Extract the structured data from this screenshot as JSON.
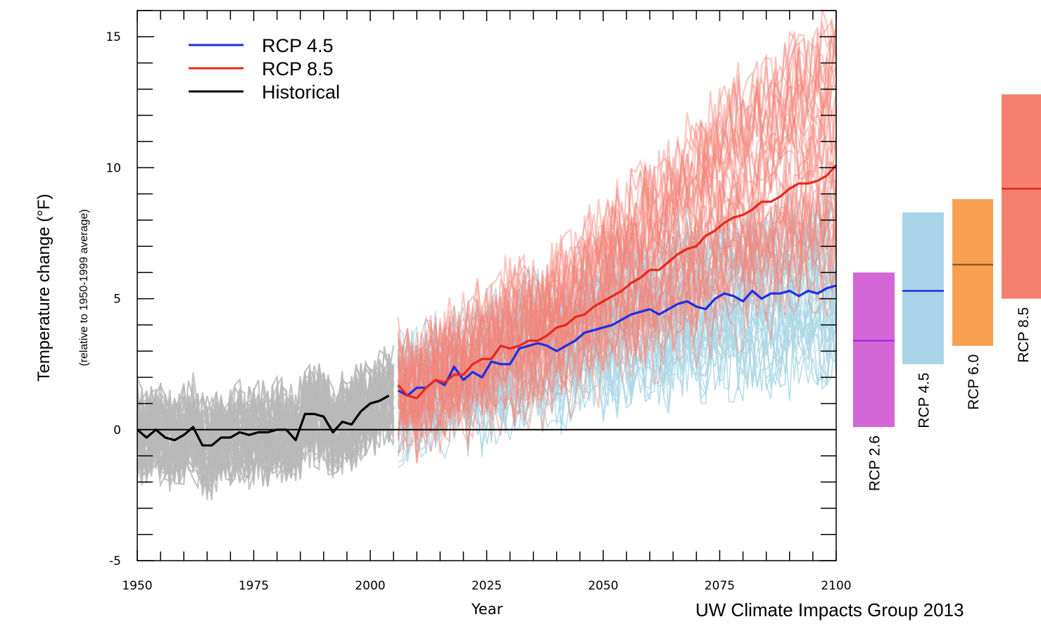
{
  "chart_data": {
    "type": "line",
    "title": "",
    "xlabel": "Year",
    "ylabel": "Temperature change (°F)",
    "ylabel_sub": "(relative to 1950-1999 average)",
    "xlim": [
      1950,
      2100
    ],
    "ylim": [
      -5,
      16
    ],
    "x_ticks": [
      "1950",
      "1975",
      "2000",
      "2025",
      "2050",
      "2075",
      "2100"
    ],
    "y_ticks": [
      "-5",
      "0",
      "5",
      "10",
      "15"
    ],
    "legend_position": "top-left",
    "series": [
      {
        "name": "RCP 4.5",
        "color": "#1a2fe6",
        "x": [
          2006,
          2008,
          2010,
          2012,
          2014,
          2016,
          2018,
          2020,
          2022,
          2024,
          2026,
          2028,
          2030,
          2032,
          2034,
          2036,
          2038,
          2040,
          2042,
          2044,
          2046,
          2048,
          2050,
          2052,
          2054,
          2056,
          2058,
          2060,
          2062,
          2064,
          2066,
          2068,
          2070,
          2072,
          2074,
          2076,
          2078,
          2080,
          2082,
          2084,
          2086,
          2088,
          2090,
          2092,
          2094,
          2096,
          2098,
          2100
        ],
        "y": [
          1.5,
          1.3,
          1.6,
          1.6,
          1.9,
          1.7,
          2.4,
          1.9,
          2.2,
          2.0,
          2.6,
          2.5,
          2.5,
          3.1,
          3.2,
          3.3,
          3.2,
          3.0,
          3.2,
          3.4,
          3.7,
          3.8,
          3.9,
          4.0,
          4.2,
          4.4,
          4.5,
          4.6,
          4.4,
          4.6,
          4.8,
          4.9,
          4.7,
          4.6,
          5.0,
          5.2,
          5.1,
          4.9,
          5.3,
          5.0,
          5.2,
          5.2,
          5.3,
          5.1,
          5.3,
          5.2,
          5.4,
          5.5
        ]
      },
      {
        "name": "RCP 8.5",
        "color": "#e8281a",
        "x": [
          2006,
          2008,
          2010,
          2012,
          2014,
          2016,
          2018,
          2020,
          2022,
          2024,
          2026,
          2028,
          2030,
          2032,
          2034,
          2036,
          2038,
          2040,
          2042,
          2044,
          2046,
          2048,
          2050,
          2052,
          2054,
          2056,
          2058,
          2060,
          2062,
          2064,
          2066,
          2068,
          2070,
          2072,
          2074,
          2076,
          2078,
          2080,
          2082,
          2084,
          2086,
          2088,
          2090,
          2092,
          2094,
          2096,
          2098,
          2100
        ],
        "y": [
          1.7,
          1.3,
          1.2,
          1.6,
          1.9,
          1.8,
          2.1,
          2.1,
          2.5,
          2.7,
          2.7,
          3.2,
          3.1,
          3.2,
          3.4,
          3.4,
          3.6,
          3.9,
          4.0,
          4.3,
          4.4,
          4.7,
          4.9,
          5.1,
          5.3,
          5.6,
          5.8,
          6.1,
          6.1,
          6.4,
          6.7,
          6.9,
          7.0,
          7.4,
          7.6,
          7.9,
          8.1,
          8.2,
          8.4,
          8.7,
          8.7,
          8.9,
          9.2,
          9.4,
          9.4,
          9.5,
          9.7,
          10.1
        ]
      },
      {
        "name": "Historical",
        "color": "#000000",
        "x": [
          1950,
          1952,
          1954,
          1956,
          1958,
          1960,
          1962,
          1964,
          1966,
          1968,
          1970,
          1972,
          1974,
          1976,
          1978,
          1980,
          1982,
          1984,
          1986,
          1988,
          1990,
          1992,
          1994,
          1996,
          1998,
          2000,
          2002,
          2004
        ],
        "y": [
          0.0,
          -0.3,
          0.0,
          -0.3,
          -0.4,
          -0.2,
          0.1,
          -0.6,
          -0.6,
          -0.3,
          -0.3,
          -0.1,
          -0.2,
          -0.1,
          -0.1,
          0.0,
          0.0,
          -0.4,
          0.6,
          0.6,
          0.5,
          -0.1,
          0.3,
          0.2,
          0.7,
          1.0,
          1.1,
          1.3
        ]
      }
    ],
    "ensembles": [
      {
        "name": "Historical models",
        "color": "#b8b8b8",
        "x_start": 1950,
        "x_end": 2005,
        "count": 40
      },
      {
        "name": "RCP 4.5 models",
        "color": "#add8e6",
        "x_start": 2006,
        "x_end": 2100,
        "count": 30
      },
      {
        "name": "RCP 8.5 models",
        "color": "#f4857a",
        "x_start": 2006,
        "x_end": 2100,
        "count": 38
      }
    ],
    "range_bars": [
      {
        "label": "RCP 2.6",
        "color": "#d466d6",
        "line_color": "#a030e8",
        "low": 0.1,
        "mean": 3.4,
        "high": 6.0
      },
      {
        "label": "RCP 4.5",
        "color": "#a9d4e8",
        "line_color": "#1a2fe6",
        "low": 2.5,
        "mean": 5.3,
        "high": 8.3
      },
      {
        "label": "RCP 6.0",
        "color": "#f8a050",
        "line_color": "#8a5a2a",
        "low": 3.2,
        "mean": 6.3,
        "high": 8.8
      },
      {
        "label": "RCP 8.5",
        "color": "#f58070",
        "line_color": "#e8281a",
        "low": 5.0,
        "mean": 9.2,
        "high": 12.8
      }
    ]
  },
  "credit": "UW Climate Impacts Group 2013"
}
